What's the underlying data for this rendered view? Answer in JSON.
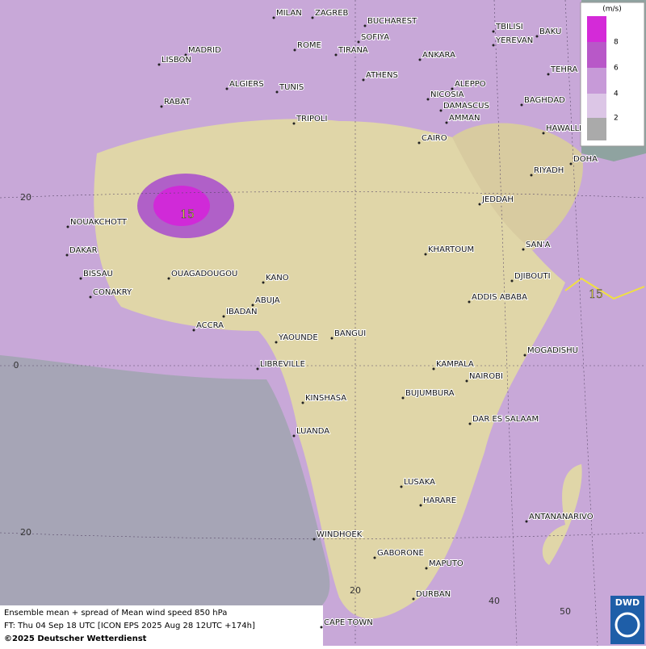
{
  "map": {
    "cities": [
      "MILAN",
      "ZAGREB",
      "BUCHAREST",
      "MADRID",
      "ROME",
      "SOFIYA",
      "ANKARA",
      "BAKU",
      "TBILISI",
      "YEREVAN",
      "LISBON",
      "TIRANA",
      "ATHENS",
      "TEHRA",
      "ALGIERS",
      "TUNIS",
      "ALEPPO",
      "NICOSIA",
      "BAGHDAD",
      "RABAT",
      "DAMASCUS",
      "AMMAN",
      "TRIPOLI",
      "HAWALLI",
      "CAIRO",
      "DOHA",
      "RIYADH",
      "NOUAKCHOTT",
      "JEDDAH",
      "DAKAR",
      "KHARTOUM",
      "SAN'A",
      "BISSAU",
      "OUAGADOUGOU",
      "KANO",
      "DJIBOUTI",
      "CONAKRY",
      "ABUJA",
      "ADDIS ABABA",
      "IBADAN",
      "ACCRA",
      "YAOUNDE",
      "BANGUI",
      "MOGADISHU",
      "LIBREVILLE",
      "KAMPALA",
      "NAIROBI",
      "KINSHASA",
      "BUJUMBURA",
      "DAR ES SALAAM",
      "LUANDA",
      "LUSAKA",
      "HARARE",
      "ANTANANARIVO",
      "WINDHOEK",
      "GABORONE",
      "MAPUTO",
      "DURBAN",
      "CAPE TOWN"
    ],
    "latitude_labels": [
      20,
      0,
      20
    ],
    "longitude_labels": [
      20,
      40,
      50
    ],
    "contour_labels": [
      15,
      15
    ]
  },
  "legend": {
    "unit": "(m/s)",
    "levels": [
      8,
      6,
      4,
      2
    ]
  },
  "footer": {
    "line1": "Ensemble mean + spread of Mean wind speed 850 hPa",
    "line2": "FT: Thu 04 Sep 18 UTC [ICON EPS 2025 Aug 28 12UTC +174h]",
    "line3": "©2025 Deutscher Wetterdienst"
  },
  "logo": "DWD"
}
